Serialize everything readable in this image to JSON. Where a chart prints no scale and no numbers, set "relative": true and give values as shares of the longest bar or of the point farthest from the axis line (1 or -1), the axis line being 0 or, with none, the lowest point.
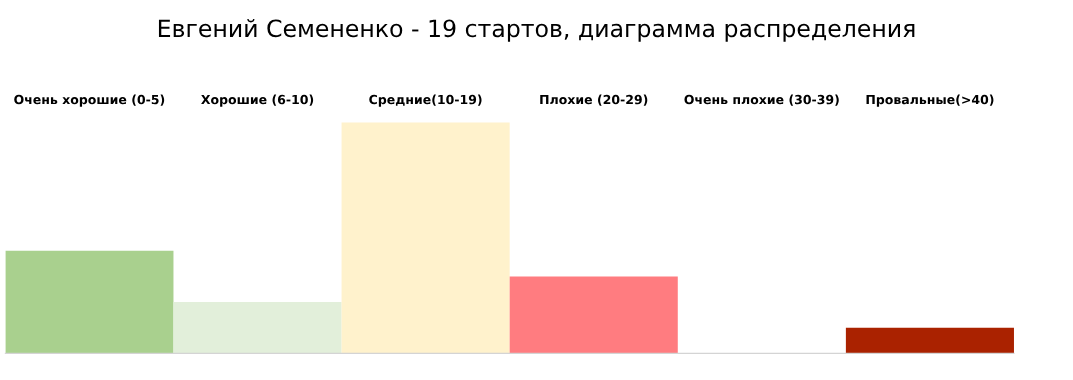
{
  "chart_data": {
    "type": "bar",
    "title": "Евгений Семененко - 19 стартов, диаграмма распределения",
    "categories": [
      "Очень хорошие (0-5)",
      "Хорошие (6-10)",
      "Средние(10-19)",
      "Плохие (20-29)",
      "Очень плохие (30-39)",
      "Провальные(>40)"
    ],
    "values": [
      0.444,
      0.222,
      1,
      0.333,
      0,
      0.111
    ],
    "colors": [
      "#a9d08e",
      "#e2efda",
      "#fff2cc",
      "#ff7c80",
      "#ffffff",
      "#aa2200"
    ],
    "relative": true,
    "grid": false
  }
}
